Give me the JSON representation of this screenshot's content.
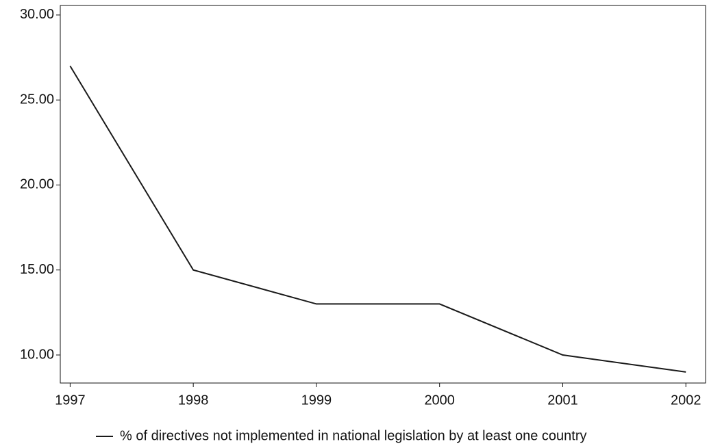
{
  "chart_data": {
    "type": "line",
    "x": [
      1997,
      1998,
      1999,
      2000,
      2001,
      2002
    ],
    "series": [
      {
        "name": "% of directives not implemented in national legislation by at least one country",
        "color": "#1a1a1a",
        "values": [
          27,
          15,
          13,
          13,
          10,
          9
        ]
      }
    ],
    "xlim": [
      1996.92,
      2002.16
    ],
    "xticks": [
      1997,
      1998,
      1999,
      2000,
      2001,
      2002
    ],
    "ylim": [
      8.35,
      30.56
    ],
    "yticks": [
      {
        "value": 10,
        "label": "10.00"
      },
      {
        "value": 15,
        "label": "15.00"
      },
      {
        "value": 20,
        "label": "20.00"
      },
      {
        "value": 25,
        "label": "25.00"
      },
      {
        "value": 30,
        "label": "30.00"
      }
    ],
    "grid": false,
    "legend": "bottom"
  }
}
